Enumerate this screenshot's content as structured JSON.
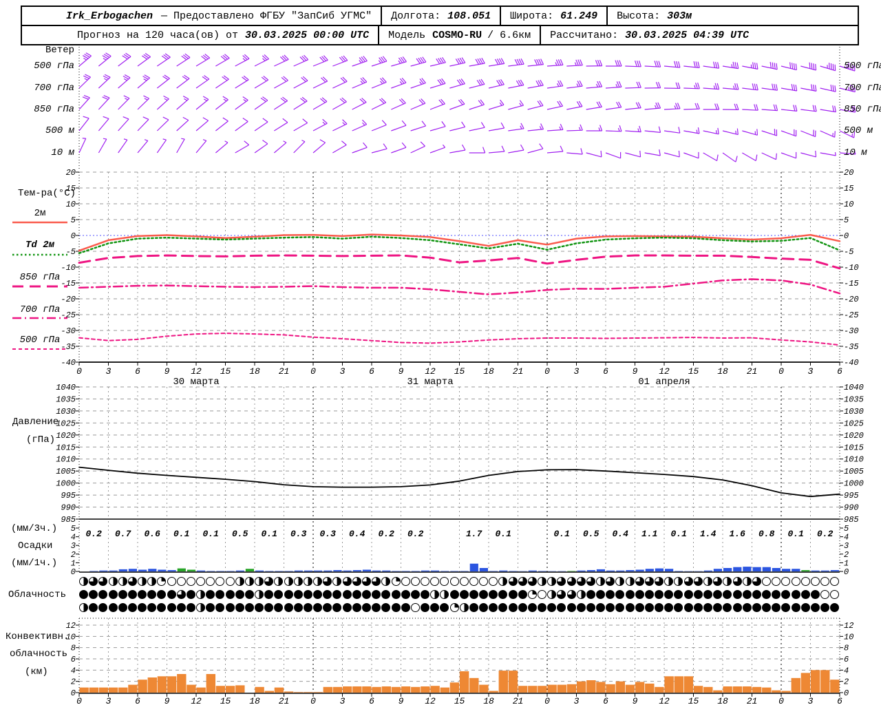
{
  "header": {
    "station": "Irk_Erbogachen",
    "provider": "— Предоставлено ФГБУ \"ЗапСиб УГМС\"",
    "lon_label": "Долгота:",
    "lon_value": "108.051",
    "lat_label": "Широта:",
    "lat_value": "61.249",
    "alt_label": "Высота:",
    "alt_value": "303м",
    "forecast_label": "Прогноз на 120 часа(ов) от",
    "forecast_time": "30.03.2025 00:00 UTC",
    "model_label": "Модель",
    "model_name": "COSMO-RU",
    "model_res": "/ 6.6км",
    "calc_label": "Рассчитано:",
    "calc_time": "30.03.2025 04:39 UTC"
  },
  "panels": {
    "wind_title": "Ветер",
    "temp_title": "Тем-ра(°C)",
    "pressure_title_1": "Давление",
    "pressure_title_2": "(гПа)",
    "precip_unit_3h": "(мм/3ч.)",
    "precip_title": "Осадки",
    "precip_unit_1h": "(мм/1ч.)",
    "clouds_title": "Облачность",
    "conv_title_1": "Конвективн.",
    "conv_title_2": "облачность",
    "conv_title_3": "(км)"
  },
  "xaxis": {
    "hours_step": 3,
    "total_hours": 78,
    "hour_labels": [
      "0",
      "3",
      "6",
      "9",
      "12",
      "15",
      "18",
      "21",
      "0",
      "3",
      "6",
      "9",
      "12",
      "15",
      "18",
      "21",
      "0",
      "3",
      "6",
      "9",
      "12",
      "15",
      "18",
      "21",
      "0",
      "3",
      "6"
    ],
    "dates": [
      {
        "label": "30 марта",
        "hour": 12
      },
      {
        "label": "31 марта",
        "hour": 36
      },
      {
        "label": "01 апреля",
        "hour": 60
      }
    ]
  },
  "colors": {
    "wind_barb": "#a020f0",
    "temp_2m": "#fa5a4c",
    "dewpoint": "#109410",
    "temp_upper": "#ee1482",
    "pressure": "#000000",
    "precip_rain": "#2b55e0",
    "precip_green": "#28a428",
    "convective": "#ee8834",
    "zero_line": "#5050ff",
    "grid": "#999999"
  },
  "chart_data": [
    {
      "id": "wind",
      "type": "wind-barbs",
      "unit": "м/с",
      "hours_step": 2,
      "rows": [
        {
          "level": "500 гПа",
          "dirs": [
            230,
            231,
            233,
            234,
            236,
            237,
            239,
            240,
            242,
            243,
            245,
            246,
            248,
            249,
            251,
            252,
            254,
            255,
            257,
            258,
            260,
            261,
            263,
            264,
            266,
            267,
            269,
            270,
            272,
            273,
            275,
            276,
            278,
            279,
            281,
            282,
            284,
            285,
            287,
            288
          ],
          "spds": [
            18,
            18,
            17,
            17,
            16,
            16,
            15,
            15,
            14,
            14,
            15,
            15,
            16,
            17,
            18,
            18,
            19,
            20,
            20,
            21,
            22,
            22,
            21,
            20,
            19,
            18,
            17,
            17,
            16,
            16,
            15,
            16,
            17,
            18,
            19,
            20,
            21,
            22,
            23,
            24
          ]
        },
        {
          "level": "700 гПа",
          "dirs": [
            226,
            227,
            229,
            230,
            232,
            233,
            235,
            236,
            238,
            239,
            241,
            242,
            244,
            245,
            247,
            248,
            250,
            251,
            253,
            254,
            256,
            257,
            259,
            260,
            262,
            263,
            265,
            266,
            268,
            269,
            271,
            272,
            274,
            275,
            277,
            278,
            280,
            281,
            283,
            284
          ],
          "spds": [
            14,
            14,
            13,
            13,
            12,
            12,
            12,
            11,
            11,
            10,
            10,
            11,
            12,
            12,
            13,
            13,
            14,
            14,
            15,
            15,
            16,
            16,
            15,
            15,
            14,
            14,
            13,
            13,
            12,
            12,
            12,
            13,
            13,
            14,
            15,
            15,
            16,
            17,
            17,
            18
          ]
        },
        {
          "level": "850 гПа",
          "dirs": [
            222,
            223,
            225,
            226,
            228,
            229,
            231,
            232,
            234,
            235,
            237,
            238,
            240,
            241,
            243,
            244,
            246,
            247,
            249,
            250,
            252,
            253,
            255,
            256,
            258,
            259,
            261,
            262,
            264,
            265,
            267,
            268,
            270,
            271,
            273,
            274,
            276,
            277,
            279,
            280
          ],
          "spds": [
            10,
            10,
            9,
            9,
            8,
            8,
            8,
            9,
            9,
            10,
            10,
            10,
            11,
            11,
            12,
            12,
            12,
            11,
            11,
            10,
            10,
            9,
            9,
            10,
            10,
            11,
            11,
            12,
            12,
            13,
            13,
            12,
            12,
            11,
            11,
            10,
            10,
            11,
            12,
            12
          ]
        },
        {
          "level": "500 м",
          "dirs": [
            218,
            220,
            222,
            224,
            226,
            228,
            230,
            232,
            234,
            236,
            238,
            240,
            242,
            244,
            246,
            248,
            250,
            252,
            254,
            256,
            258,
            260,
            262,
            264,
            266,
            268,
            270,
            272,
            274,
            276,
            278,
            280,
            282,
            284,
            286,
            288,
            290,
            292,
            294,
            296
          ],
          "spds": [
            7,
            7,
            6,
            6,
            6,
            5,
            5,
            5,
            6,
            6,
            7,
            7,
            8,
            8,
            8,
            7,
            7,
            6,
            6,
            6,
            7,
            7,
            8,
            8,
            9,
            9,
            9,
            8,
            8,
            7,
            7,
            8,
            8,
            9,
            9,
            10,
            10,
            10,
            9,
            9
          ]
        },
        {
          "level": "10 м",
          "dirs": [
            205,
            210,
            215,
            220,
            215,
            210,
            220,
            230,
            240,
            235,
            230,
            225,
            230,
            240,
            250,
            255,
            250,
            245,
            250,
            260,
            270,
            265,
            260,
            255,
            265,
            275,
            285,
            290,
            285,
            280,
            285,
            290,
            300,
            305,
            300,
            295,
            290,
            285,
            280,
            275
          ],
          "spds": [
            3,
            3,
            4,
            4,
            3,
            3,
            4,
            4,
            5,
            5,
            4,
            4,
            5,
            5,
            6,
            6,
            5,
            5,
            4,
            5,
            5,
            6,
            6,
            5,
            5,
            6,
            6,
            7,
            6,
            6,
            5,
            5,
            6,
            6,
            7,
            7,
            6,
            5,
            4,
            4
          ]
        }
      ]
    },
    {
      "id": "temperature",
      "type": "line",
      "ylabel": "°C",
      "ylim": [
        -40,
        20
      ],
      "yticks": [
        20,
        15,
        10,
        5,
        0,
        -5,
        -10,
        -15,
        -20,
        -25,
        -30,
        -35,
        -40
      ],
      "x_hours_step": 3,
      "zero_line": true,
      "series": [
        {
          "name": "2м",
          "style": "solid",
          "color_key": "temp_2m",
          "values": [
            -4.8,
            -1.5,
            -0.2,
            0.1,
            -0.3,
            -0.8,
            -0.4,
            0.1,
            0.2,
            -0.2,
            0.3,
            0.0,
            -0.5,
            -1.8,
            -3.3,
            -1.5,
            -2.9,
            -1.0,
            -0.3,
            -0.2,
            -0.3,
            -0.4,
            -0.9,
            -1.3,
            -0.9,
            0.2,
            -1.8
          ]
        },
        {
          "name": "Td  2м",
          "style": "dotted",
          "color_key": "dewpoint",
          "values": [
            -5.6,
            -2.5,
            -1.0,
            -0.7,
            -1.0,
            -1.3,
            -1.0,
            -0.7,
            -0.5,
            -1.0,
            -0.4,
            -0.8,
            -1.5,
            -2.8,
            -4.1,
            -2.6,
            -4.5,
            -2.5,
            -1.3,
            -0.9,
            -0.7,
            -0.9,
            -1.5,
            -1.9,
            -1.7,
            -0.8,
            -4.7
          ]
        },
        {
          "name": "850 гПа",
          "style": "longdash",
          "color_key": "temp_upper",
          "values": [
            -8.6,
            -7.1,
            -6.5,
            -6.3,
            -6.5,
            -6.6,
            -6.4,
            -6.3,
            -6.4,
            -6.5,
            -6.4,
            -6.3,
            -7.0,
            -8.5,
            -7.9,
            -7.1,
            -8.9,
            -7.7,
            -6.7,
            -6.3,
            -6.3,
            -6.4,
            -6.4,
            -6.8,
            -7.3,
            -7.7,
            -10.4
          ]
        },
        {
          "name": "700 гПа",
          "style": "dashdot",
          "color_key": "temp_upper",
          "values": [
            -16.5,
            -16.2,
            -15.9,
            -15.8,
            -16.0,
            -16.2,
            -16.3,
            -16.2,
            -16.0,
            -16.3,
            -16.5,
            -16.5,
            -17.0,
            -17.8,
            -18.6,
            -18.0,
            -17.2,
            -16.8,
            -16.9,
            -16.5,
            -16.2,
            -15.2,
            -14.2,
            -13.8,
            -14.2,
            -15.5,
            -18.3
          ]
        },
        {
          "name": "500 гПа",
          "style": "shortdash",
          "color_key": "temp_upper",
          "values": [
            -32.3,
            -33.2,
            -32.8,
            -31.8,
            -31.1,
            -30.9,
            -31.1,
            -31.4,
            -32.1,
            -32.6,
            -33.2,
            -33.8,
            -34.0,
            -33.6,
            -33.0,
            -32.6,
            -32.4,
            -32.4,
            -32.5,
            -32.4,
            -32.3,
            -32.2,
            -32.4,
            -32.3,
            -33.0,
            -33.6,
            -34.6
          ]
        }
      ]
    },
    {
      "id": "pressure",
      "type": "line",
      "ylabel": "гПа",
      "ylim": [
        985,
        1040
      ],
      "yticks": [
        1040,
        1035,
        1030,
        1025,
        1020,
        1015,
        1010,
        1005,
        1000,
        995,
        990,
        985
      ],
      "x_hours_step": 3,
      "values": [
        1006.6,
        1005.3,
        1004.1,
        1003.2,
        1002.4,
        1001.6,
        1000.6,
        999.3,
        998.5,
        998.3,
        998.3,
        998.5,
        999.2,
        1000.8,
        1003.2,
        1004.8,
        1005.5,
        1005.6,
        1005.0,
        1004.3,
        1003.6,
        1002.7,
        1001.3,
        998.9,
        995.9,
        994.4,
        995.4
      ]
    },
    {
      "id": "precipitation",
      "type": "bar",
      "ylim": [
        0,
        5
      ],
      "yticks": [
        5,
        4,
        3,
        2,
        1,
        0
      ],
      "sums_3h": [
        "0.2",
        "0.7",
        "0.6",
        "0.1",
        "0.1",
        "0.5",
        "0.1",
        "0.3",
        "0.3",
        "0.4",
        "0.2",
        "0.2",
        "",
        "1.7",
        "0.1",
        "",
        "0.1",
        "0.5",
        "0.4",
        "1.1",
        "0.1",
        "1.4",
        "1.6",
        "0.8",
        "0.1",
        "0.2"
      ],
      "hourly": [
        0,
        0.05,
        0.1,
        0.1,
        0.25,
        0.3,
        0.2,
        0.3,
        0.2,
        0.15,
        0.35,
        0.2,
        0.1,
        0.05,
        0.05,
        0.05,
        0.1,
        0.3,
        0.1,
        0.05,
        0.05,
        0.05,
        0.1,
        0.1,
        0.1,
        0.1,
        0.15,
        0.1,
        0.15,
        0.2,
        0.1,
        0.1,
        0.05,
        0.05,
        0.05,
        0.1,
        0.1,
        0.05,
        0.05,
        0.05,
        0.9,
        0.4,
        0.05,
        0.1,
        0.05,
        0.03,
        0.1,
        0.05,
        0.03,
        0.03,
        0.05,
        0.1,
        0.15,
        0.25,
        0.1,
        0.1,
        0.15,
        0.2,
        0.3,
        0.35,
        0.3,
        0.05,
        0.03,
        0.03,
        0.1,
        0.3,
        0.4,
        0.5,
        0.55,
        0.5,
        0.5,
        0.4,
        0.3,
        0.3,
        0.15,
        0.1,
        0.1,
        0.15
      ],
      "green_hours": [
        10,
        11,
        17,
        50,
        74
      ]
    },
    {
      "id": "cloud-cover",
      "type": "symbol-rows",
      "okta_scale": "0=ясно 4=сплошная",
      "rows": [
        "233223221000000022232222232333321000000000023332233332322333223323232300000000",
        "444444444434244444244444444444444444224444444410233244444444444444444444444400",
        "244444444444244444444444444444444404441244444444444444444444444444444444444444"
      ]
    },
    {
      "id": "convective-clouds",
      "type": "bar",
      "ylabel": "км",
      "ylim": [
        0,
        13
      ],
      "yticks": [
        12,
        10,
        8,
        6,
        4,
        2,
        0
      ],
      "hourly": [
        0.9,
        0.9,
        0.9,
        0.9,
        0.9,
        1.4,
        2.3,
        2.7,
        2.9,
        2.9,
        3.3,
        1.4,
        0.9,
        3.3,
        1.2,
        1.2,
        1.3,
        0,
        1.0,
        0.3,
        0.9,
        0.2,
        0.1,
        0.1,
        0.1,
        1.0,
        1.0,
        1.1,
        1.1,
        1.1,
        1.0,
        1.1,
        1.0,
        1.1,
        1.0,
        1.1,
        1.2,
        0.9,
        1.8,
        3.8,
        2.6,
        1.4,
        0.3,
        3.9,
        3.9,
        1.2,
        1.2,
        1.2,
        1.4,
        1.4,
        1.5,
        2.0,
        2.2,
        1.9,
        1.5,
        2.0,
        1.4,
        1.9,
        1.6,
        1.0,
        2.9,
        2.9,
        2.9,
        1.2,
        1.0,
        0.4,
        1.1,
        1.1,
        1.1,
        1.0,
        0.9,
        0.4,
        0.3,
        2.6,
        3.5,
        4.0,
        4.0,
        2.3
      ]
    }
  ]
}
